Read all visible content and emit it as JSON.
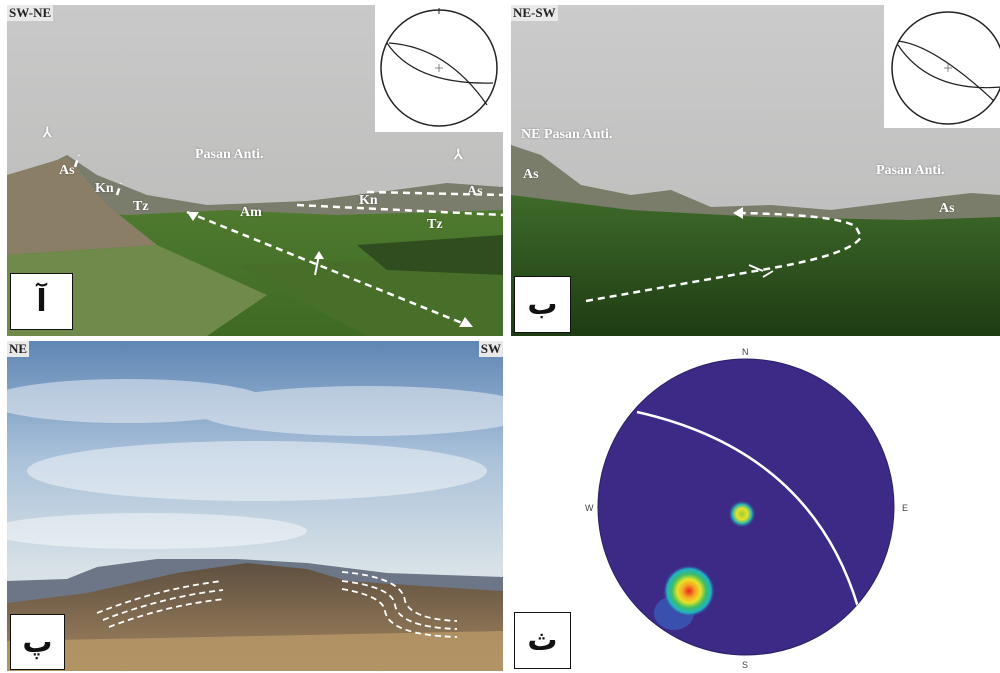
{
  "panel_a": {
    "orientation": "SW-NE",
    "caption": "آ",
    "fold_label": "Pasan Anti.",
    "units": [
      "As",
      "Kn",
      "Tz",
      "Am",
      "Kn",
      "As",
      "Tz"
    ],
    "marker_left": "⅄",
    "marker_right": "⅄"
  },
  "panel_b": {
    "orientation": "NE-SW",
    "caption": "ب",
    "fold_label_left": "NE Pasan Anti.",
    "fold_label_right": "Pasan Anti.",
    "units": [
      "As",
      "As"
    ]
  },
  "panel_p": {
    "left_dir": "NE",
    "right_dir": "SW",
    "caption": "پ"
  },
  "panel_th": {
    "caption": "ث",
    "compass": {
      "n": "N",
      "s": "S",
      "e": "E",
      "w": "W"
    },
    "colors": {
      "background": "#3c2a86",
      "plane": "#ffffff",
      "hot": "#e8231e"
    }
  }
}
